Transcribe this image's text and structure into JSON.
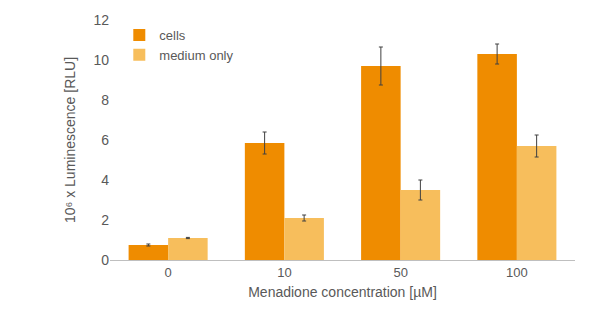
{
  "chart_data": {
    "type": "bar",
    "categories": [
      "0",
      "10",
      "50",
      "100"
    ],
    "x_label": "Menadione concentration [µM]",
    "y_label": "10⁶ x Luminescence [RLU]",
    "series": [
      {
        "name": "cells",
        "color": "#ef8c00",
        "values": [
          0.75,
          5.85,
          9.7,
          10.3
        ],
        "errors": [
          0.05,
          0.55,
          0.95,
          0.5
        ]
      },
      {
        "name": "medium only",
        "color": "#f7be5c",
        "values": [
          1.1,
          2.1,
          3.5,
          5.7
        ],
        "errors": [
          0.03,
          0.15,
          0.5,
          0.55
        ]
      }
    ],
    "ylim": [
      0,
      12
    ],
    "yticks": [
      0,
      2,
      4,
      6,
      8,
      10,
      12
    ],
    "grid": false,
    "legend": "top left"
  }
}
